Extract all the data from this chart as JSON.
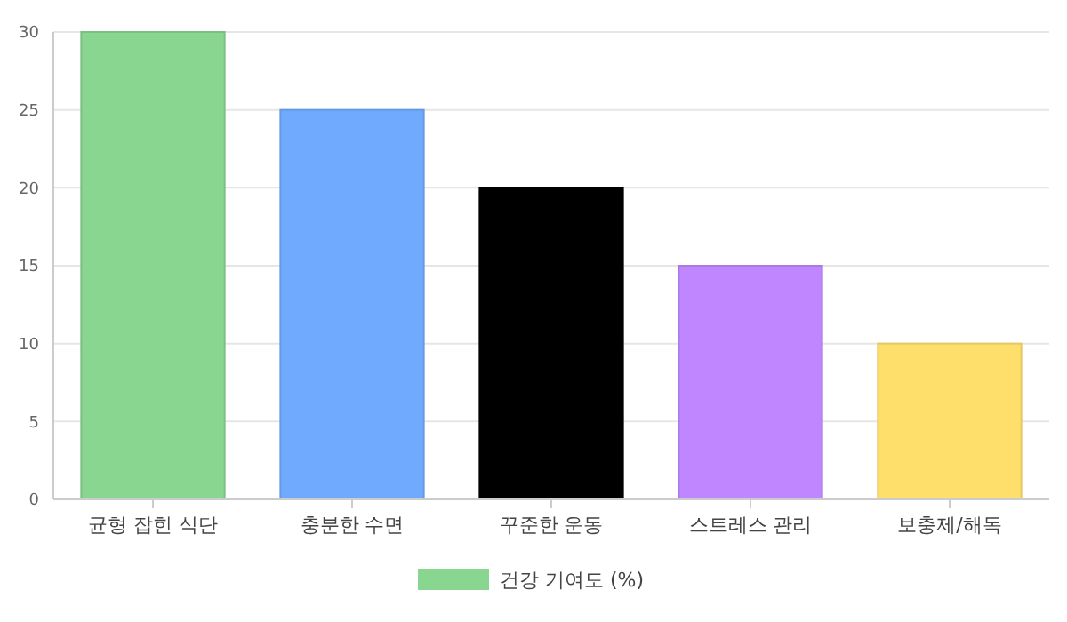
{
  "chart_data": {
    "type": "bar",
    "categories": [
      "균형 잡힌 식단",
      "충분한 수면",
      "꾸준한 운동",
      "스트레스 관리",
      "보충제/해독"
    ],
    "series": [
      {
        "name": "건강 기여도 (%)",
        "color": "#88d68f",
        "colors": [
          "#88d68f",
          "#70aaff",
          "#000000",
          "#bf86ff",
          "#ffdf6b"
        ],
        "values": [
          30,
          25,
          20,
          15,
          10
        ]
      }
    ],
    "ylim": [
      0,
      30
    ],
    "yticks": [
      0,
      5,
      10,
      15,
      20,
      25,
      30
    ],
    "grid": "y",
    "legend": "bottom"
  }
}
